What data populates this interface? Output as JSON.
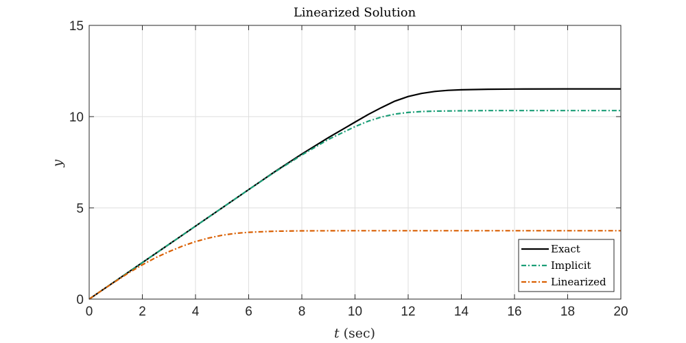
{
  "chart_data": {
    "type": "line",
    "title": "Linearized Solution",
    "xlabel_var": "t",
    "xlabel_unit": "(sec)",
    "ylabel": "y",
    "xlim": [
      0,
      20
    ],
    "ylim": [
      0,
      15
    ],
    "xticks": [
      0,
      2,
      4,
      6,
      8,
      10,
      12,
      14,
      16,
      18,
      20
    ],
    "yticks": [
      0,
      5,
      10,
      15
    ],
    "grid": true,
    "legend_position": "bottom-right",
    "series": [
      {
        "name": "Exact",
        "color": "#000000",
        "dash": "solid",
        "x": [
          0,
          1,
          2,
          3,
          4,
          5,
          6,
          7,
          8,
          9,
          10,
          10.5,
          11,
          11.5,
          12,
          12.5,
          13,
          13.5,
          14,
          15,
          16,
          18,
          20
        ],
        "y": [
          0,
          1.0,
          2.0,
          3.0,
          4.0,
          5.0,
          6.0,
          7.0,
          7.95,
          8.85,
          9.7,
          10.12,
          10.5,
          10.85,
          11.1,
          11.27,
          11.38,
          11.44,
          11.47,
          11.5,
          11.51,
          11.52,
          11.52
        ]
      },
      {
        "name": "Implicit",
        "color": "#1b9e77",
        "dash": "dashdot",
        "x": [
          0,
          1,
          2,
          3,
          4,
          5,
          6,
          7,
          8,
          9,
          10,
          10.5,
          11,
          11.5,
          12,
          12.5,
          13,
          14,
          15,
          16,
          18,
          20
        ],
        "y": [
          0,
          1.0,
          2.0,
          3.0,
          4.0,
          5.0,
          6.0,
          6.98,
          7.9,
          8.75,
          9.45,
          9.75,
          9.98,
          10.14,
          10.23,
          10.28,
          10.3,
          10.32,
          10.33,
          10.33,
          10.33,
          10.33
        ]
      },
      {
        "name": "Linearized",
        "color": "#d95f02",
        "dash": "dashdot",
        "x": [
          0,
          0.5,
          1,
          1.5,
          2,
          2.5,
          3,
          3.5,
          4,
          4.5,
          5,
          5.5,
          6,
          7,
          8,
          10,
          12,
          14,
          16,
          18,
          20
        ],
        "y": [
          0,
          0.5,
          0.98,
          1.45,
          1.88,
          2.27,
          2.6,
          2.9,
          3.15,
          3.35,
          3.5,
          3.6,
          3.66,
          3.72,
          3.74,
          3.75,
          3.75,
          3.75,
          3.75,
          3.75,
          3.75
        ]
      }
    ]
  }
}
